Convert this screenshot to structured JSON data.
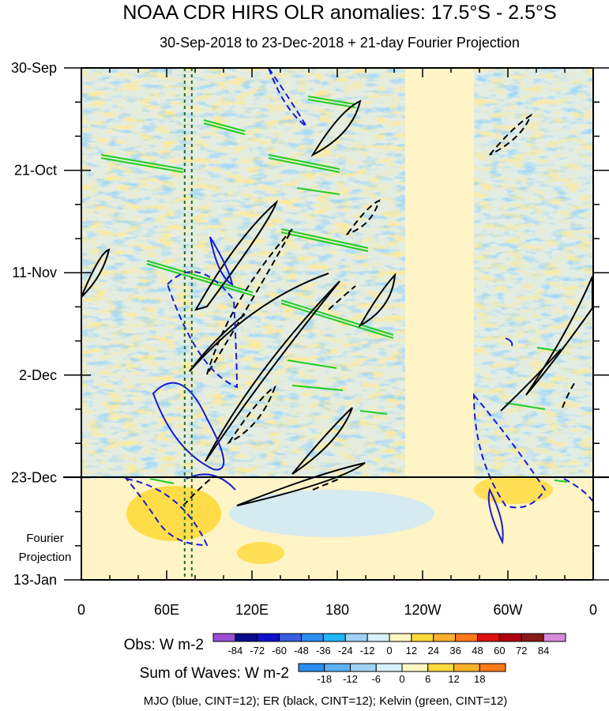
{
  "chart_data": {
    "type": "heatmap",
    "title": "NOAA CDR HIRS OLR anomalies: 17.5°S - 2.5°S",
    "subtitle": "30-Sep-2018 to 23-Dec-2018 + 21-day Fourier Projection",
    "x_axis": {
      "ticks": [
        {
          "lon": 0,
          "label": "0"
        },
        {
          "lon": 60,
          "label": "60E"
        },
        {
          "lon": 120,
          "label": "120E"
        },
        {
          "lon": 180,
          "label": "180"
        },
        {
          "lon": 240,
          "label": "120W"
        },
        {
          "lon": 300,
          "label": "60W"
        },
        {
          "lon": 360,
          "label": "0"
        }
      ],
      "range": [
        0,
        360
      ]
    },
    "y_axis": {
      "ticks": [
        {
          "day": 0,
          "label": "30-Sep"
        },
        {
          "day": 21,
          "label": "21-Oct"
        },
        {
          "day": 42,
          "label": "11-Nov"
        },
        {
          "day": 63,
          "label": "2-Dec"
        },
        {
          "day": 84,
          "label": "23-Dec"
        },
        {
          "day": 105,
          "label": "13-Jan"
        }
      ],
      "range_dates": [
        "30-Sep-2018",
        "13-Jan-2019"
      ],
      "projection_start": "23-Dec",
      "projection_label_line1": "Fourier",
      "projection_label_line2": "Projection"
    },
    "obs_legend": {
      "label": "Obs: W m-2",
      "levels": [
        "-84",
        "-72",
        "-60",
        "-48",
        "-36",
        "-24",
        "-12",
        "0",
        "12",
        "24",
        "36",
        "48",
        "60",
        "72",
        "84"
      ],
      "colors": [
        "#9a4fd6",
        "#0a0a8a",
        "#1010c8",
        "#3a5ee0",
        "#2a8ef0",
        "#22b8f5",
        "#9fd2f6",
        "#d8f0fb",
        "#fff7c0",
        "#ffd93a",
        "#ffb02a",
        "#ff7a1a",
        "#e01010",
        "#b00010",
        "#8a1a1a",
        "#d98cd9"
      ]
    },
    "waves_legend": {
      "label": "Sum of Waves: W m-2",
      "levels": [
        "-18",
        "-12",
        "-6",
        "0",
        "6",
        "12",
        "18"
      ],
      "colors": [
        "#2a8ef0",
        "#5cb0f3",
        "#9fd2f6",
        "#d8f0fb",
        "#fff7c0",
        "#ffd93a",
        "#ffb02a",
        "#ff7a1a"
      ]
    },
    "footer": "MJO (blue, CINT=12); ER (black, CINT=12); Kelvin (green, CINT=12)",
    "series": [
      {
        "name": "MJO",
        "color": "#1a1ad0"
      },
      {
        "name": "ER",
        "color": "#000000"
      },
      {
        "name": "Kelvin",
        "color": "#22cc22"
      }
    ],
    "reference_lines_lon": [
      75,
      80
    ]
  }
}
